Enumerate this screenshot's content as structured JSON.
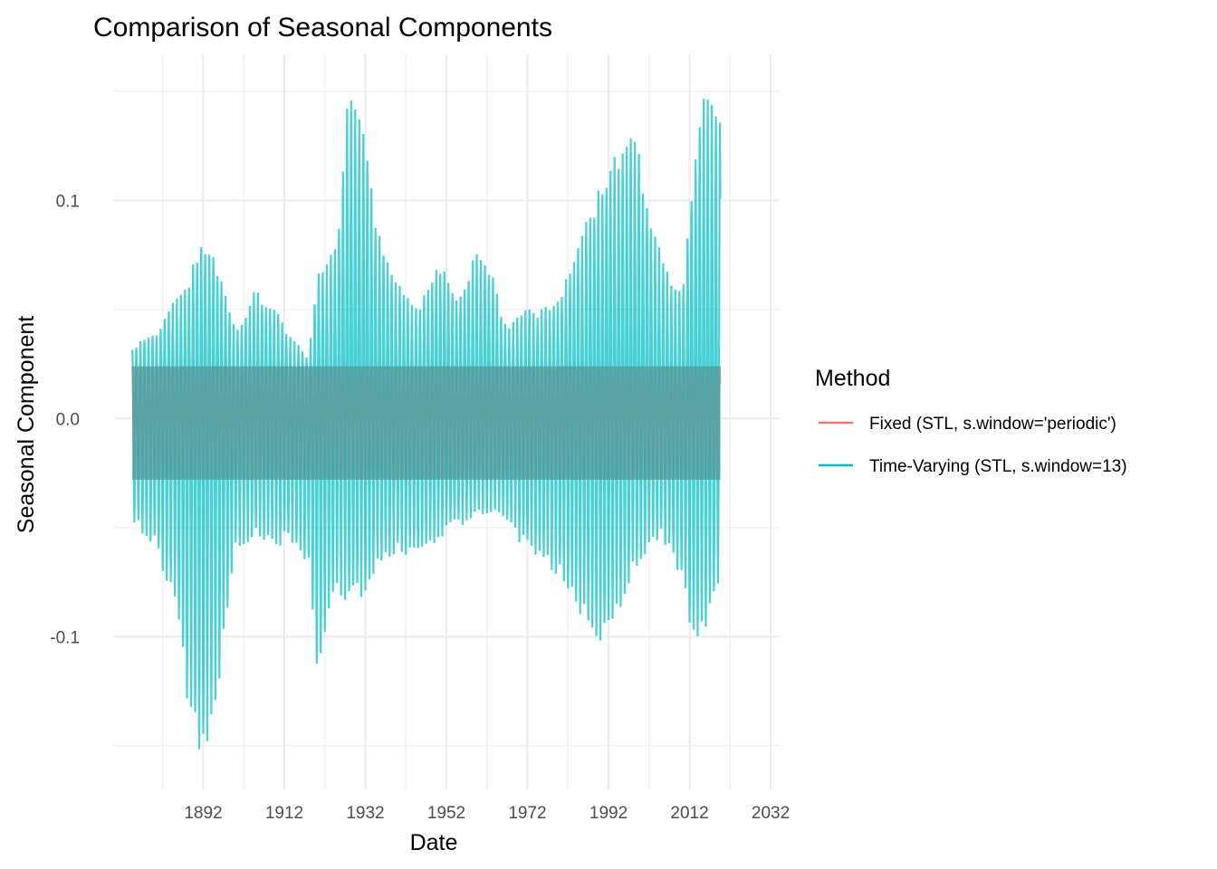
{
  "chart_data": {
    "type": "line",
    "title": "Comparison of Seasonal Components",
    "xlabel": "Date",
    "ylabel": "Seasonal Component",
    "xlim": [
      1870,
      2034
    ],
    "ylim": [
      -0.17,
      0.167
    ],
    "x_ticks": [
      1892,
      1912,
      1932,
      1952,
      1972,
      1992,
      2012,
      2032
    ],
    "x_tick_labels": [
      "1892",
      "1912",
      "1932",
      "1952",
      "1972",
      "1992",
      "2012",
      "2032"
    ],
    "y_ticks": [
      -0.1,
      0.0,
      0.1
    ],
    "y_tick_labels": [
      "-0.1",
      "0.0",
      "0.1"
    ],
    "grid": true,
    "legend_placement": "right",
    "legend": {
      "title": "Method",
      "entries": [
        "Fixed (STL, s.window='periodic')",
        "Time-Varying (STL, s.window=13)"
      ]
    },
    "x_range": [
      1874.5,
      2019.6
    ],
    "fixed_band": [
      -0.028,
      0.024
    ],
    "series": [
      {
        "name": "Fixed (STL, s.window='periodic')",
        "color": "#F8766D",
        "yearly_max": 0.024,
        "yearly_min": -0.028
      },
      {
        "name": "Time-Varying (STL, s.window=13)",
        "color": "#00BFC4",
        "x": [
          1875,
          1880,
          1885,
          1888,
          1891,
          1893,
          1896,
          1900,
          1905,
          1910,
          1913,
          1918,
          1920,
          1925,
          1928,
          1932,
          1935,
          1940,
          1945,
          1950,
          1955,
          1960,
          1963,
          1967,
          1970,
          1975,
          1980,
          1985,
          1990,
          1995,
          1998,
          2002,
          2005,
          2010,
          2013,
          2016,
          2019
        ],
        "upper_envelope": [
          0.035,
          0.04,
          0.055,
          0.062,
          0.08,
          0.085,
          0.07,
          0.04,
          0.06,
          0.053,
          0.039,
          0.03,
          0.065,
          0.082,
          0.16,
          0.13,
          0.09,
          0.062,
          0.05,
          0.075,
          0.058,
          0.079,
          0.07,
          0.04,
          0.05,
          0.05,
          0.058,
          0.082,
          0.11,
          0.125,
          0.135,
          0.1,
          0.075,
          0.058,
          0.12,
          0.157,
          0.141
        ],
        "lower_envelope": [
          -0.05,
          -0.058,
          -0.088,
          -0.13,
          -0.155,
          -0.155,
          -0.12,
          -0.06,
          -0.055,
          -0.06,
          -0.055,
          -0.07,
          -0.12,
          -0.08,
          -0.085,
          -0.082,
          -0.07,
          -0.063,
          -0.066,
          -0.055,
          -0.05,
          -0.045,
          -0.043,
          -0.05,
          -0.057,
          -0.065,
          -0.074,
          -0.09,
          -0.105,
          -0.087,
          -0.072,
          -0.06,
          -0.055,
          -0.075,
          -0.105,
          -0.1,
          -0.077
        ]
      }
    ]
  }
}
